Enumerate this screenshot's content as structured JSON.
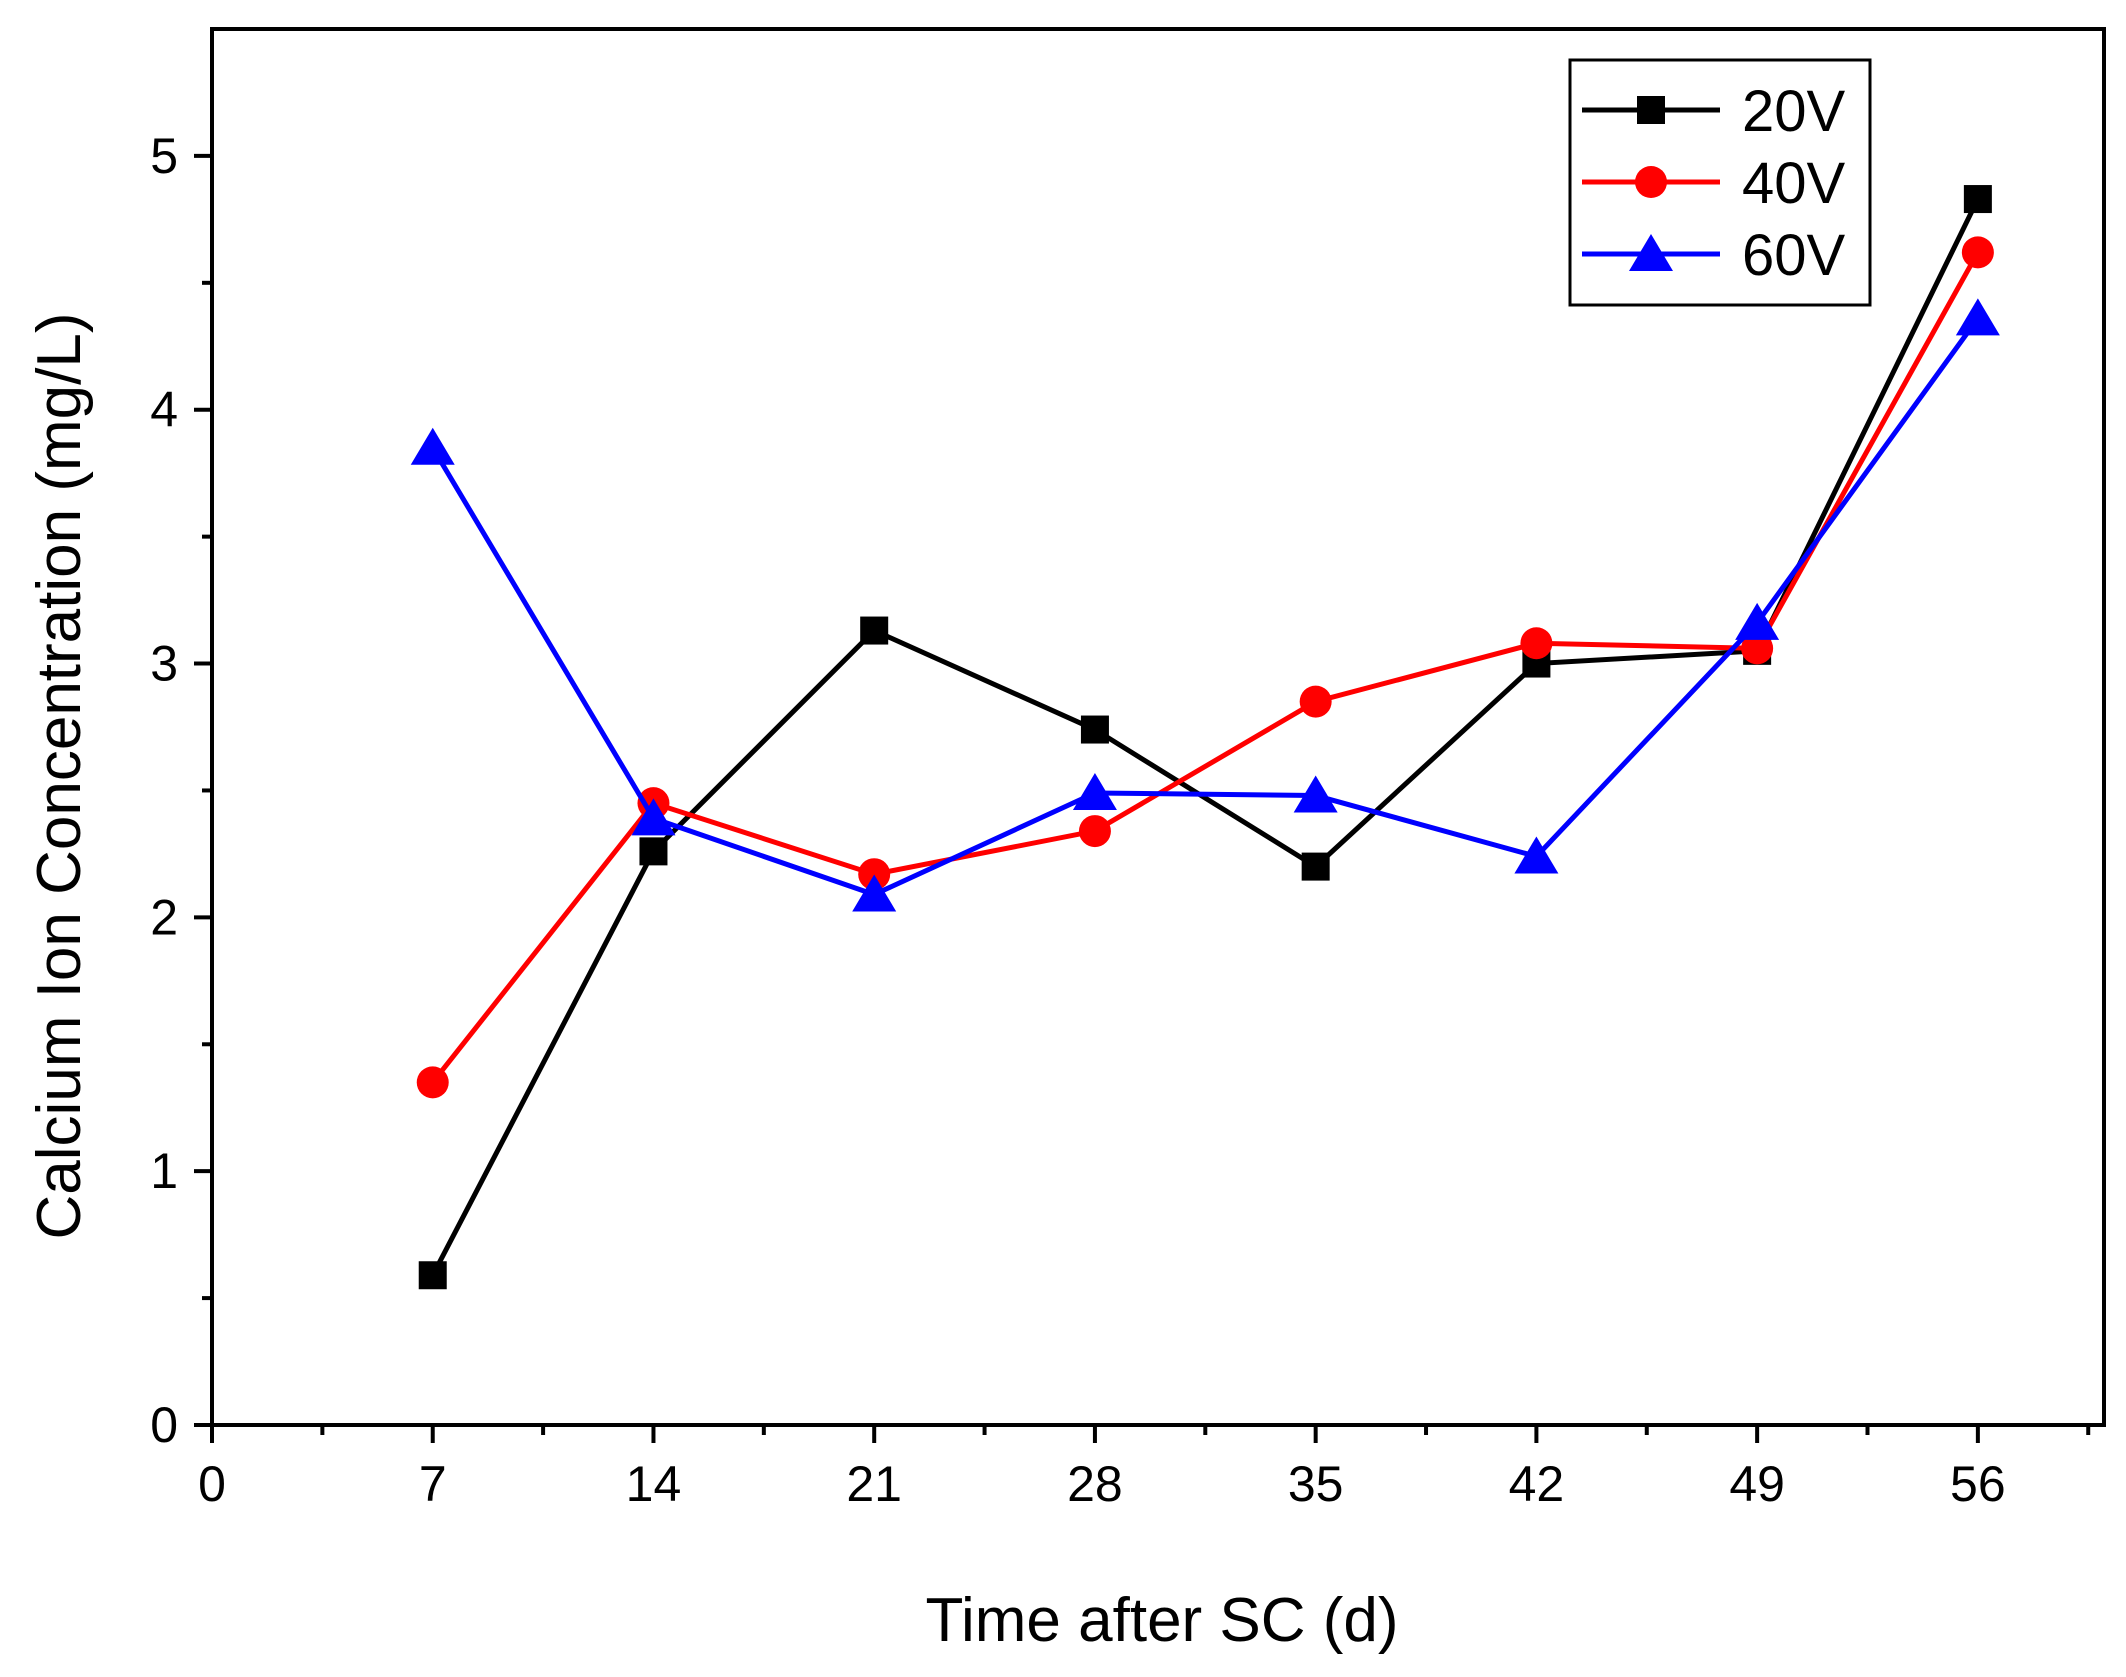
{
  "chart_data": {
    "type": "line",
    "title": "",
    "xlabel": "Time after SC (d)",
    "ylabel": "Calcium Ion Concentration (mg/L)",
    "xlim": [
      0,
      60
    ],
    "ylim": [
      0,
      5.5
    ],
    "x_major_ticks": [
      0,
      7,
      14,
      21,
      28,
      35,
      42,
      49,
      56
    ],
    "x_minor_ticks": [
      3.5,
      10.5,
      17.5,
      24.5,
      31.5,
      38.5,
      45.5,
      52.5,
      59.5
    ],
    "y_major_ticks": [
      0,
      1,
      2,
      3,
      4,
      5
    ],
    "y_minor_ticks": [
      0.5,
      1.5,
      2.5,
      3.5,
      4.5
    ],
    "x_tick_labels": [
      "0",
      "7",
      "14",
      "21",
      "28",
      "35",
      "42",
      "49",
      "56"
    ],
    "y_tick_labels": [
      "0",
      "1",
      "2",
      "3",
      "4",
      "5"
    ],
    "grid": false,
    "legend_position": "top-right",
    "x": [
      7,
      14,
      21,
      28,
      35,
      42,
      49,
      56
    ],
    "series": [
      {
        "name": "20V",
        "color": "#000000",
        "marker": "square",
        "values": [
          0.59,
          2.26,
          3.13,
          2.74,
          2.2,
          3.0,
          3.05,
          4.83
        ]
      },
      {
        "name": "40V",
        "color": "#ff0000",
        "marker": "circle",
        "values": [
          1.35,
          2.45,
          2.17,
          2.34,
          2.85,
          3.08,
          3.06,
          4.62
        ]
      },
      {
        "name": "60V",
        "color": "#0000ff",
        "marker": "triangle",
        "values": [
          3.85,
          2.39,
          2.09,
          2.49,
          2.48,
          2.24,
          3.16,
          4.36
        ]
      }
    ]
  }
}
